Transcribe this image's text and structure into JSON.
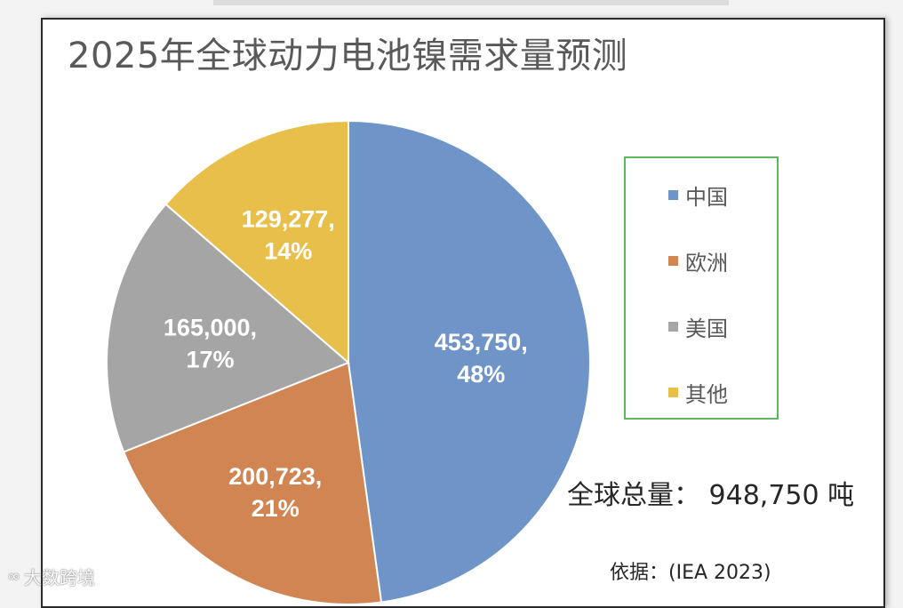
{
  "watermark": {
    "logo_glyph": "∞",
    "text": "大数跨境"
  },
  "total": {
    "label": "全球总量：",
    "value": "948,750",
    "unit": "吨"
  },
  "source": {
    "text": "依据：(IEA 2023)"
  },
  "chart_data": {
    "type": "pie",
    "title": "2025年全球动力电池镍需求量预测",
    "start_angle_deg": 0,
    "direction": "clockwise",
    "legend_position": "right",
    "slices": [
      {
        "name": "中国",
        "value": 453750,
        "value_label": "453,750,",
        "percent_label": "48%",
        "color": "#6f95c8"
      },
      {
        "name": "欧洲",
        "value": 200723,
        "value_label": "200,723,",
        "percent_label": "21%",
        "color": "#d08552"
      },
      {
        "name": "美国",
        "value": 165000,
        "value_label": "165,000,",
        "percent_label": "17%",
        "color": "#a5a5a5"
      },
      {
        "name": "其他",
        "value": 129277,
        "value_label": "129,277,",
        "percent_label": "14%",
        "color": "#e8bf4a"
      }
    ]
  }
}
